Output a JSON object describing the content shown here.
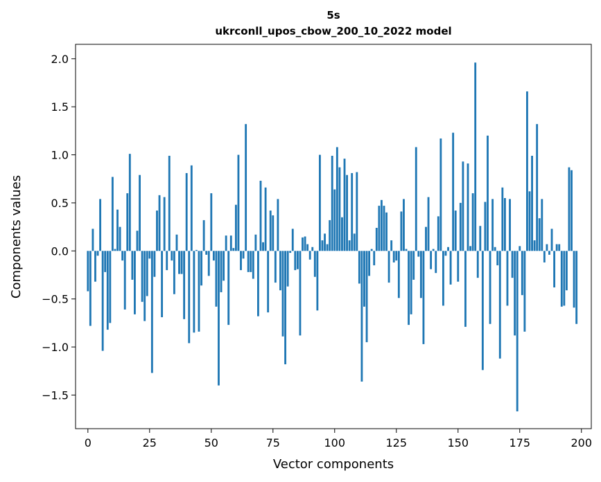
{
  "chart_data": {
    "type": "bar",
    "title": "5s",
    "subtitle": "ukrconll_upos_cbow_200_10_2022 model",
    "xlabel": "Vector components",
    "ylabel": "Components values",
    "xlim": [
      -5,
      204
    ],
    "ylim": [
      -1.85,
      2.15
    ],
    "xticks": [
      0,
      25,
      50,
      75,
      100,
      125,
      150,
      175,
      200
    ],
    "yticks": [
      -1.5,
      -1.0,
      -0.5,
      0.0,
      0.5,
      1.0,
      1.5,
      2.0
    ],
    "ytick_labels": [
      "−1.5",
      "−1.0",
      "−0.5",
      "0.0",
      "0.5",
      "1.0",
      "1.5",
      "2.0"
    ],
    "grid": false,
    "bar_color": "#1f77b4",
    "values": [
      -0.42,
      -0.78,
      0.23,
      -0.32,
      -0.05,
      0.54,
      -1.04,
      -0.22,
      -0.82,
      -0.75,
      0.77,
      0.02,
      0.43,
      0.25,
      -0.1,
      -0.61,
      0.6,
      1.01,
      -0.3,
      -0.66,
      0.21,
      0.79,
      -0.53,
      -0.73,
      -0.47,
      -0.08,
      -1.27,
      -0.27,
      0.42,
      0.58,
      -0.69,
      0.56,
      -0.2,
      0.99,
      -0.1,
      -0.45,
      0.17,
      -0.24,
      -0.24,
      -0.71,
      0.81,
      -0.96,
      0.89,
      -0.85,
      0.01,
      -0.84,
      -0.36,
      0.32,
      -0.04,
      -0.26,
      0.6,
      -0.1,
      -0.58,
      -1.4,
      -0.43,
      -0.31,
      0.16,
      -0.77,
      0.16,
      0.03,
      0.48,
      1.0,
      -0.2,
      -0.08,
      1.32,
      -0.22,
      -0.22,
      -0.29,
      0.17,
      -0.68,
      0.73,
      0.09,
      0.66,
      -0.64,
      0.42,
      0.37,
      -0.33,
      0.54,
      -0.41,
      -0.89,
      -1.18,
      -0.37,
      -0.02,
      0.23,
      -0.2,
      -0.19,
      -0.88,
      0.14,
      0.15,
      0.07,
      -0.09,
      0.04,
      -0.27,
      -0.62,
      1.0,
      0.11,
      0.18,
      0.07,
      0.32,
      0.99,
      0.64,
      1.08,
      0.87,
      0.35,
      0.96,
      0.79,
      0.11,
      0.81,
      0.18,
      0.82,
      -0.34,
      -1.36,
      -0.58,
      -0.95,
      -0.26,
      0.02,
      -0.15,
      0.24,
      0.47,
      0.53,
      0.47,
      0.4,
      -0.33,
      0.11,
      -0.12,
      -0.1,
      -0.49,
      0.41,
      0.54,
      0.02,
      -0.77,
      -0.66,
      -0.3,
      1.08,
      -0.06,
      -0.49,
      -0.97,
      0.25,
      0.56,
      -0.19,
      0.02,
      -0.23,
      0.36,
      1.17,
      -0.57,
      -0.05,
      0.04,
      -0.35,
      1.23,
      0.42,
      -0.32,
      0.5,
      0.93,
      -0.79,
      0.91,
      0.05,
      0.6,
      1.96,
      -0.28,
      0.26,
      -1.24,
      0.51,
      1.2,
      -0.76,
      0.54,
      0.04,
      -0.15,
      -1.12,
      0.66,
      0.55,
      -0.57,
      0.54,
      -0.28,
      -0.88,
      -1.67,
      0.05,
      -0.46,
      -0.84,
      1.66,
      0.62,
      0.99,
      0.11,
      1.32,
      0.34,
      0.54,
      -0.12,
      0.07,
      -0.04,
      0.23,
      -0.38,
      0.07,
      0.07,
      -0.58,
      -0.57,
      -0.41,
      0.87,
      0.84,
      -0.59,
      -0.76
    ]
  }
}
